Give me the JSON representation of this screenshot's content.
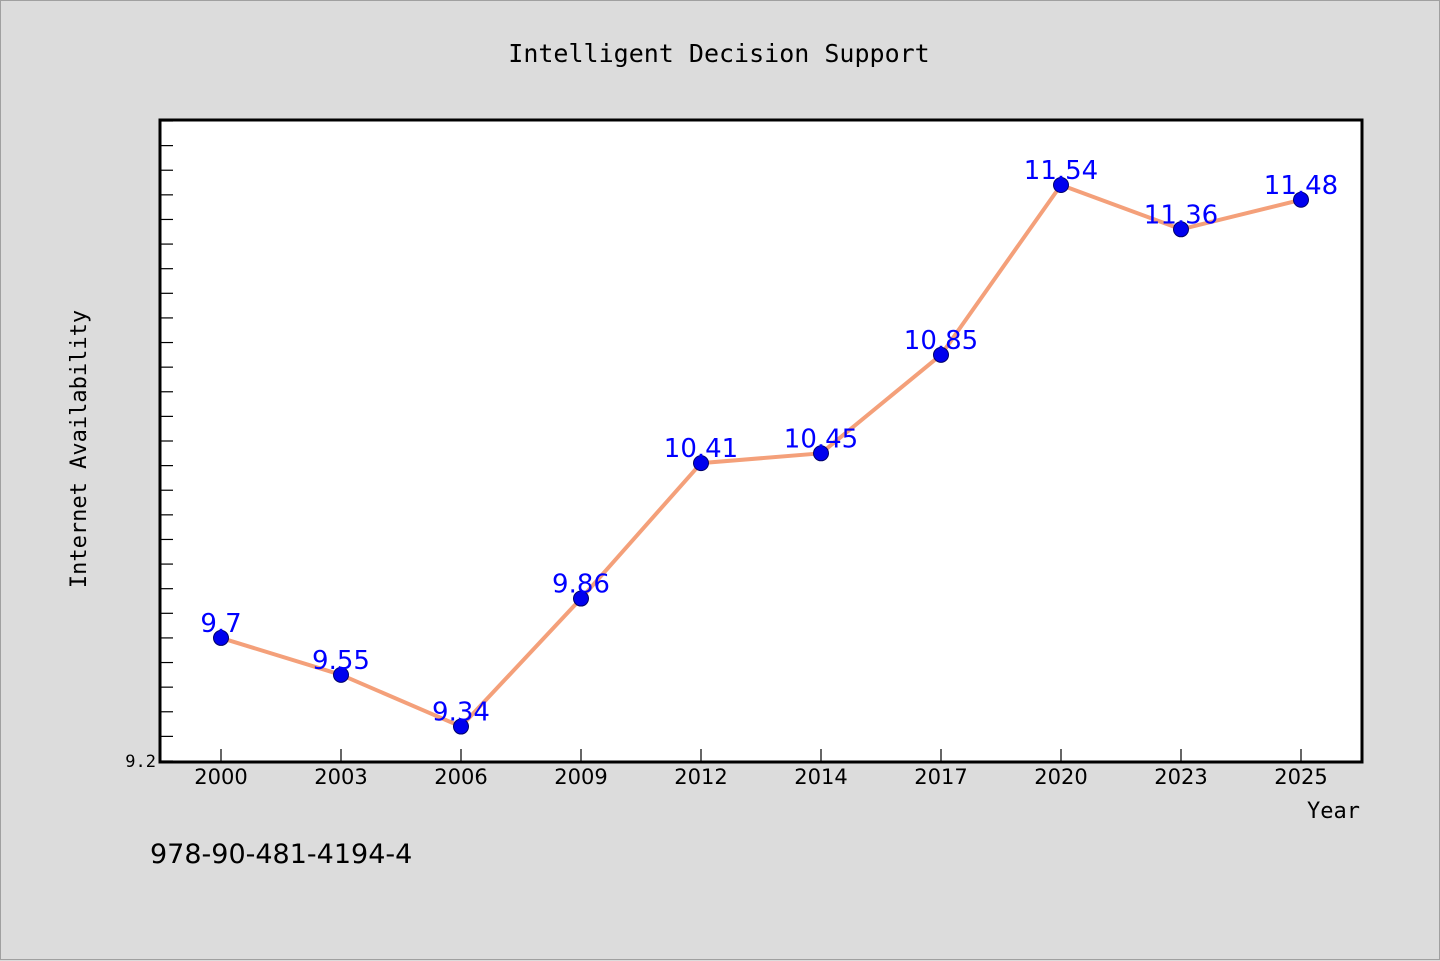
{
  "chart_data": {
    "type": "line",
    "title": "Intelligent Decision Support",
    "xlabel": "Year",
    "ylabel": "Internet Availability",
    "x": [
      "2000",
      "2003",
      "2006",
      "2009",
      "2012",
      "2014",
      "2017",
      "2020",
      "2023",
      "2025"
    ],
    "series": [
      {
        "values": [
          9.7,
          9.55,
          9.34,
          9.86,
          10.41,
          10.45,
          10.85,
          11.54,
          11.36,
          11.48
        ],
        "labels": [
          "9.7",
          "9.55",
          "9.34",
          "9.86",
          "10.41",
          "10.45",
          "10.85",
          "11.54",
          "11.36",
          "11.48"
        ]
      }
    ],
    "y_tick_labels": [
      "9.2"
    ],
    "ylim": [
      9.2,
      11.8
    ],
    "y_minor_tick_step": 0.1,
    "grid": false,
    "legend": "none"
  },
  "footer_text": "978-90-481-4194-4",
  "colors": {
    "background": "#dcdcdc",
    "plot_background": "#ffffff",
    "line": "#f4a07a",
    "marker": "#0000ee",
    "data_label": "#0000ff",
    "axis": "#000000"
  }
}
